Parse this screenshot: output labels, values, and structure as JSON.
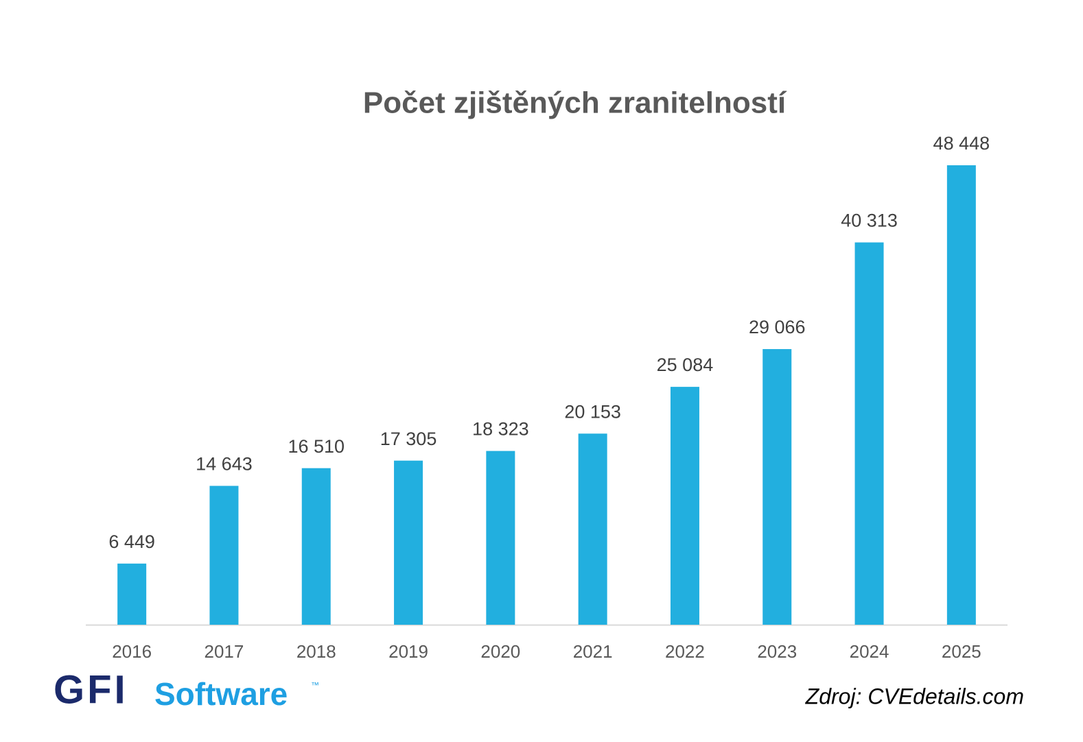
{
  "chart_data": {
    "type": "bar",
    "title": "Počet zjištěných zranitelností",
    "categories": [
      "2016",
      "2017",
      "2018",
      "2019",
      "2020",
      "2021",
      "2022",
      "2023",
      "2024",
      "2025"
    ],
    "values": [
      6449,
      14643,
      16510,
      17305,
      18323,
      20153,
      25084,
      29066,
      40313,
      48448
    ],
    "value_labels": [
      "6 449",
      "14 643",
      "16 510",
      "17 305",
      "18 323",
      "20 153",
      "25 084",
      "29 066",
      "40 313",
      "48 448"
    ],
    "color": "#22afdf"
  },
  "logo": {
    "brand": "GFI",
    "product": "Software",
    "mark": "™"
  },
  "source": "Zdroj: CVEdetails.com"
}
